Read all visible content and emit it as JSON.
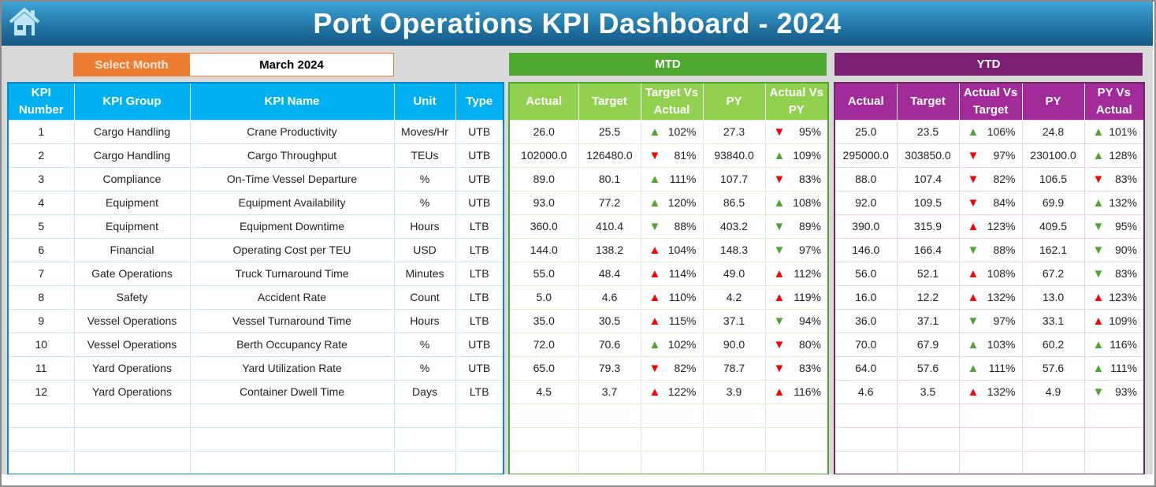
{
  "header": {
    "title": "Port Operations KPI Dashboard - 2024",
    "home_icon": "home-icon"
  },
  "selector": {
    "label": "Select Month",
    "value": "March 2024"
  },
  "colors": {
    "good": "#4ea72e",
    "bad": "#ff0000",
    "left_header": "#00b0f0",
    "mtd_header": "#92d050",
    "ytd_header": "#a02b99",
    "mtd_banner": "#4ea72e",
    "ytd_banner": "#7a1f72",
    "select_label": "#ed7d31"
  },
  "mtd": {
    "title": "MTD",
    "columns": [
      "Actual",
      "Target",
      "Target Vs Actual",
      "PY",
      "Actual Vs PY"
    ]
  },
  "ytd": {
    "title": "YTD",
    "columns": [
      "Actual",
      "Target",
      "Actual Vs Target",
      "PY",
      "PY Vs Actual"
    ]
  },
  "kpi_columns": [
    "KPI Number",
    "KPI Group",
    "KPI Name",
    "Unit",
    "Type"
  ],
  "rows": [
    {
      "num": "1",
      "group": "Cargo Handling",
      "name": "Crane Productivity",
      "unit": "Moves/Hr",
      "type": "UTB",
      "mtd": [
        "26.0",
        "25.5",
        [
          "up",
          "102%"
        ],
        "27.3",
        [
          "down",
          "95%"
        ]
      ],
      "ytd": [
        "25.0",
        "23.5",
        [
          "up",
          "106%"
        ],
        "24.8",
        [
          "up",
          "101%"
        ]
      ]
    },
    {
      "num": "2",
      "group": "Cargo Handling",
      "name": "Cargo Throughput",
      "unit": "TEUs",
      "type": "UTB",
      "mtd": [
        "102000.0",
        "126480.0",
        [
          "down",
          "81%"
        ],
        "93840.0",
        [
          "up",
          "109%"
        ]
      ],
      "ytd": [
        "295000.0",
        "303850.0",
        [
          "down",
          "97%"
        ],
        "230100.0",
        [
          "up",
          "128%"
        ]
      ]
    },
    {
      "num": "3",
      "group": "Compliance",
      "name": "On-Time Vessel Departure",
      "unit": "%",
      "type": "UTB",
      "mtd": [
        "89.0",
        "80.1",
        [
          "up",
          "111%"
        ],
        "107.7",
        [
          "down",
          "83%"
        ]
      ],
      "ytd": [
        "88.0",
        "107.4",
        [
          "down",
          "82%"
        ],
        "106.5",
        [
          "down",
          "83%"
        ]
      ]
    },
    {
      "num": "4",
      "group": "Equipment",
      "name": "Equipment Availability",
      "unit": "%",
      "type": "UTB",
      "mtd": [
        "93.0",
        "77.2",
        [
          "up",
          "120%"
        ],
        "86.5",
        [
          "up",
          "108%"
        ]
      ],
      "ytd": [
        "92.0",
        "109.5",
        [
          "down",
          "84%"
        ],
        "69.9",
        [
          "up",
          "132%"
        ]
      ]
    },
    {
      "num": "5",
      "group": "Equipment",
      "name": "Equipment Downtime",
      "unit": "Hours",
      "type": "LTB",
      "mtd": [
        "360.0",
        "410.4",
        [
          "down",
          "88%"
        ],
        "403.2",
        [
          "down",
          "89%"
        ]
      ],
      "ytd": [
        "390.0",
        "315.9",
        [
          "up",
          "123%"
        ],
        "409.5",
        [
          "down",
          "95%"
        ]
      ]
    },
    {
      "num": "6",
      "group": "Financial",
      "name": "Operating Cost per TEU",
      "unit": "USD",
      "type": "LTB",
      "mtd": [
        "144.0",
        "138.2",
        [
          "up",
          "104%"
        ],
        "148.3",
        [
          "down",
          "97%"
        ]
      ],
      "ytd": [
        "146.0",
        "166.4",
        [
          "down",
          "88%"
        ],
        "162.1",
        [
          "down",
          "90%"
        ]
      ]
    },
    {
      "num": "7",
      "group": "Gate Operations",
      "name": "Truck Turnaround Time",
      "unit": "Minutes",
      "type": "LTB",
      "mtd": [
        "55.0",
        "48.4",
        [
          "up",
          "114%"
        ],
        "49.0",
        [
          "up",
          "112%"
        ]
      ],
      "ytd": [
        "56.0",
        "52.1",
        [
          "up",
          "108%"
        ],
        "67.2",
        [
          "down",
          "83%"
        ]
      ]
    },
    {
      "num": "8",
      "group": "Safety",
      "name": "Accident Rate",
      "unit": "Count",
      "type": "LTB",
      "mtd": [
        "5.0",
        "4.6",
        [
          "up",
          "110%"
        ],
        "4.2",
        [
          "up",
          "119%"
        ]
      ],
      "ytd": [
        "16.0",
        "12.2",
        [
          "up",
          "132%"
        ],
        "13.0",
        [
          "up",
          "123%"
        ]
      ]
    },
    {
      "num": "9",
      "group": "Vessel Operations",
      "name": "Vessel Turnaround Time",
      "unit": "Hours",
      "type": "LTB",
      "mtd": [
        "35.0",
        "30.5",
        [
          "up",
          "115%"
        ],
        "37.1",
        [
          "down",
          "94%"
        ]
      ],
      "ytd": [
        "36.0",
        "37.1",
        [
          "down",
          "97%"
        ],
        "33.1",
        [
          "up",
          "109%"
        ]
      ]
    },
    {
      "num": "10",
      "group": "Vessel Operations",
      "name": "Berth Occupancy Rate",
      "unit": "%",
      "type": "UTB",
      "mtd": [
        "72.0",
        "70.6",
        [
          "up",
          "102%"
        ],
        "90.0",
        [
          "down",
          "80%"
        ]
      ],
      "ytd": [
        "70.0",
        "67.9",
        [
          "up",
          "103%"
        ],
        "60.2",
        [
          "up",
          "116%"
        ]
      ]
    },
    {
      "num": "11",
      "group": "Yard Operations",
      "name": "Yard Utilization Rate",
      "unit": "%",
      "type": "UTB",
      "mtd": [
        "65.0",
        "79.3",
        [
          "down",
          "82%"
        ],
        "78.7",
        [
          "down",
          "83%"
        ]
      ],
      "ytd": [
        "64.0",
        "57.6",
        [
          "up",
          "111%"
        ],
        "57.6",
        [
          "up",
          "111%"
        ]
      ]
    },
    {
      "num": "12",
      "group": "Yard Operations",
      "name": "Container Dwell Time",
      "unit": "Days",
      "type": "LTB",
      "mtd": [
        "4.5",
        "3.7",
        [
          "up",
          "122%"
        ],
        "3.9",
        [
          "up",
          "116%"
        ]
      ],
      "ytd": [
        "4.6",
        "3.5",
        [
          "up",
          "132%"
        ],
        "4.9",
        [
          "down",
          "93%"
        ]
      ]
    }
  ]
}
